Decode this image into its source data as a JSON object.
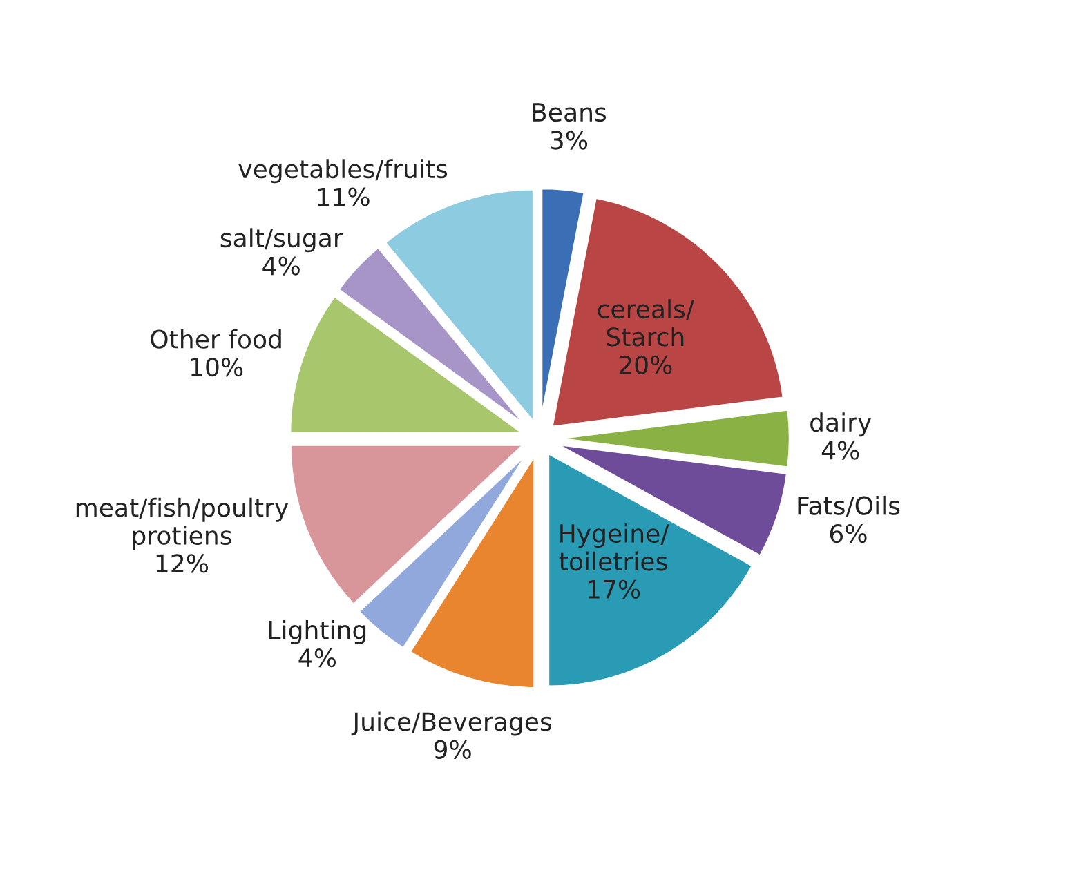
{
  "chart_data": {
    "type": "pie",
    "categories": [
      "Beans",
      "cereals/\nStarch",
      "dairy",
      "Fats/Oils",
      "Hygeine/\ntoiletries",
      "Juice/Beverages",
      "Lighting",
      "meat/fish/poultry\nprotiens",
      "Other food",
      "salt/sugar",
      "vegetables/fruits"
    ],
    "values": [
      3,
      20,
      4,
      6,
      17,
      9,
      4,
      12,
      10,
      4,
      11
    ],
    "value_labels": [
      "3%",
      "20%",
      "4%",
      "6%",
      "17%",
      "9%",
      "4%",
      "12%",
      "10%",
      "4%",
      "11%"
    ],
    "colors": [
      "#3a6fb5",
      "#b94545",
      "#8ab143",
      "#6e4c9a",
      "#2a9bb5",
      "#e8852e",
      "#90a8dc",
      "#d8969a",
      "#a8c66c",
      "#a795c8",
      "#8ccbe0"
    ],
    "legend": false
  }
}
